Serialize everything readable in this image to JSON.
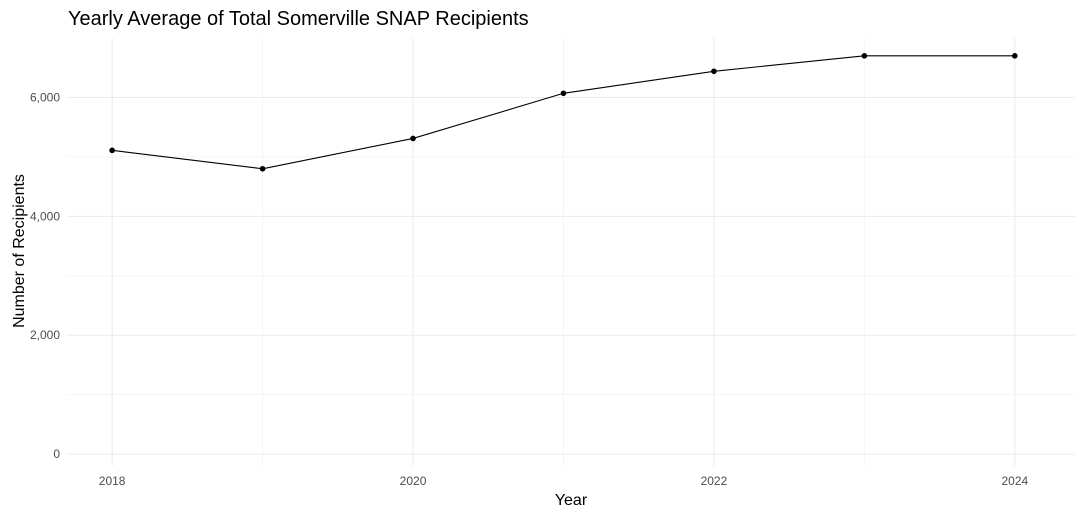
{
  "chart_data": {
    "type": "line",
    "title": "Yearly Average of Total Somerville SNAP Recipients",
    "xlabel": "Year",
    "ylabel": "Number of Recipients",
    "x": [
      2018,
      2019,
      2020,
      2021,
      2022,
      2023,
      2024
    ],
    "series": [
      {
        "values": [
          5110,
          4800,
          5310,
          6070,
          6440,
          6700,
          6700
        ]
      }
    ],
    "x_ticks": [
      2018,
      2020,
      2022,
      2024
    ],
    "x_tick_labels": [
      "2018",
      "2020",
      "2022",
      "2024"
    ],
    "y_ticks": [
      0,
      2000,
      4000,
      6000
    ],
    "y_tick_labels": [
      "0",
      "2,000",
      "4,000",
      "6,000"
    ],
    "xlim": [
      2017.7,
      2024.4
    ],
    "ylim": [
      -200,
      7000
    ],
    "grid": true,
    "legend": "none",
    "colors": {
      "line": "#000000",
      "points": "#000000",
      "grid": "#ebebeb",
      "tick_text": "#4d4d4d",
      "background": "#ffffff"
    }
  }
}
